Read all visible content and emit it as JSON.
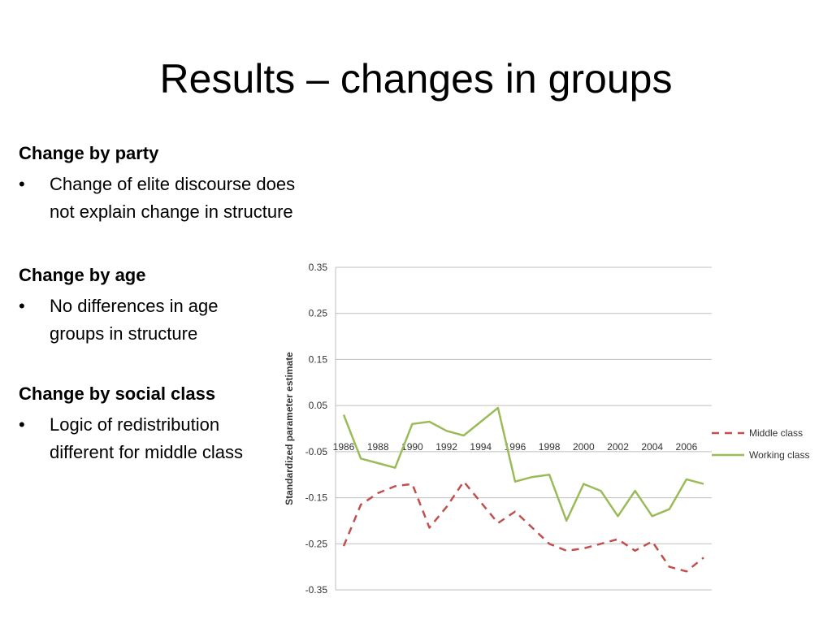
{
  "slide": {
    "title": "Results – changes in groups"
  },
  "sections": [
    {
      "heading": "Change by party",
      "bullet": "Change of elite discourse does not explain change in structure"
    },
    {
      "heading": "Change by age",
      "bullet": "No differences in age groups in structure"
    },
    {
      "heading": "Change by social class",
      "bullet": "Logic of redistribution different for middle class"
    }
  ],
  "bullet_symbol": "•",
  "chart_data": {
    "type": "line",
    "title": "",
    "xlabel": "",
    "ylabel": "Standardized parameter estimate",
    "x": [
      1986,
      1987,
      1988,
      1989,
      1990,
      1991,
      1992,
      1993,
      1994,
      1995,
      1996,
      1997,
      1998,
      1999,
      2000,
      2001,
      2002,
      2003,
      2004,
      2005,
      2006,
      2007
    ],
    "x_tick_labels": [
      "1986",
      "1988",
      "1990",
      "1992",
      "1994",
      "1996",
      "1998",
      "2000",
      "2002",
      "2004",
      "2006"
    ],
    "y_ticks": [
      "0.35",
      "0.25",
      "0.15",
      "0.05",
      "-0.05",
      "-0.15",
      "-0.25",
      "-0.35"
    ],
    "ylim": [
      -0.35,
      0.35
    ],
    "grid": true,
    "legend_position": "right",
    "series": [
      {
        "name": "Middle class",
        "color": "#c0504d",
        "style": "dashed",
        "values": [
          -0.255,
          -0.165,
          -0.14,
          -0.125,
          -0.12,
          -0.215,
          -0.17,
          -0.115,
          -0.16,
          -0.205,
          -0.18,
          -0.215,
          -0.25,
          -0.265,
          -0.26,
          -0.25,
          -0.24,
          -0.265,
          -0.245,
          -0.3,
          -0.31,
          -0.28
        ]
      },
      {
        "name": "Working class",
        "color": "#9bbb59",
        "style": "solid",
        "values": [
          0.03,
          -0.065,
          -0.075,
          -0.085,
          0.01,
          0.015,
          -0.005,
          -0.015,
          0.015,
          0.045,
          -0.115,
          -0.105,
          -0.1,
          -0.2,
          -0.12,
          -0.135,
          -0.19,
          -0.135,
          -0.19,
          -0.175,
          -0.11,
          -0.12
        ]
      }
    ]
  }
}
